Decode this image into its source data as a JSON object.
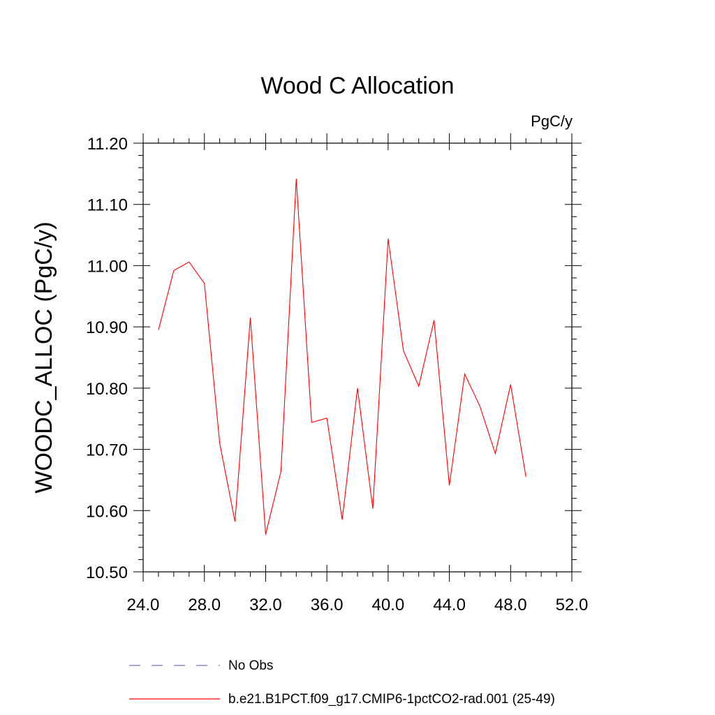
{
  "chart_data": {
    "type": "line",
    "title": "Wood C Allocation",
    "units_label": "PgC/y",
    "xlabel": "",
    "ylabel": "WOODC_ALLOC  (PgC/y)",
    "xlim": [
      24,
      52
    ],
    "ylim": [
      10.5,
      11.2
    ],
    "xticks": [
      24,
      28,
      32,
      36,
      40,
      44,
      48,
      52
    ],
    "xtick_labels": [
      "24.0",
      "28.0",
      "32.0",
      "36.0",
      "40.0",
      "44.0",
      "48.0",
      "52.0"
    ],
    "yticks": [
      10.5,
      10.6,
      10.7,
      10.8,
      10.9,
      11.0,
      11.1,
      11.2
    ],
    "ytick_labels": [
      "10.50",
      "10.60",
      "10.70",
      "10.80",
      "10.90",
      "11.00",
      "11.10",
      "11.20"
    ],
    "grid": false,
    "legend_position": "bottom",
    "x": [
      25,
      26,
      27,
      28,
      29,
      30,
      31,
      32,
      33,
      34,
      35,
      36,
      37,
      38,
      39,
      40,
      41,
      42,
      43,
      44,
      45,
      46,
      47,
      48,
      49
    ],
    "series": [
      {
        "name": "b.e21.B1PCT.f09_g17.CMIP6-1pctCO2-rad.001 (25-49)",
        "color": "#ff0000",
        "style": "solid",
        "values": [
          10.895,
          10.992,
          11.006,
          10.971,
          10.71,
          10.582,
          10.915,
          10.561,
          10.664,
          11.142,
          10.744,
          10.751,
          10.585,
          10.8,
          10.603,
          11.044,
          10.861,
          10.803,
          10.911,
          10.641,
          10.823,
          10.77,
          10.693,
          10.806,
          10.655
        ]
      }
    ],
    "legend": [
      {
        "label": "No Obs",
        "color": "#7a6fb0",
        "style": "dashed"
      },
      {
        "label": "b.e21.B1PCT.f09_g17.CMIP6-1pctCO2-rad.001 (25-49)",
        "color": "#ff0000",
        "style": "solid"
      }
    ]
  }
}
